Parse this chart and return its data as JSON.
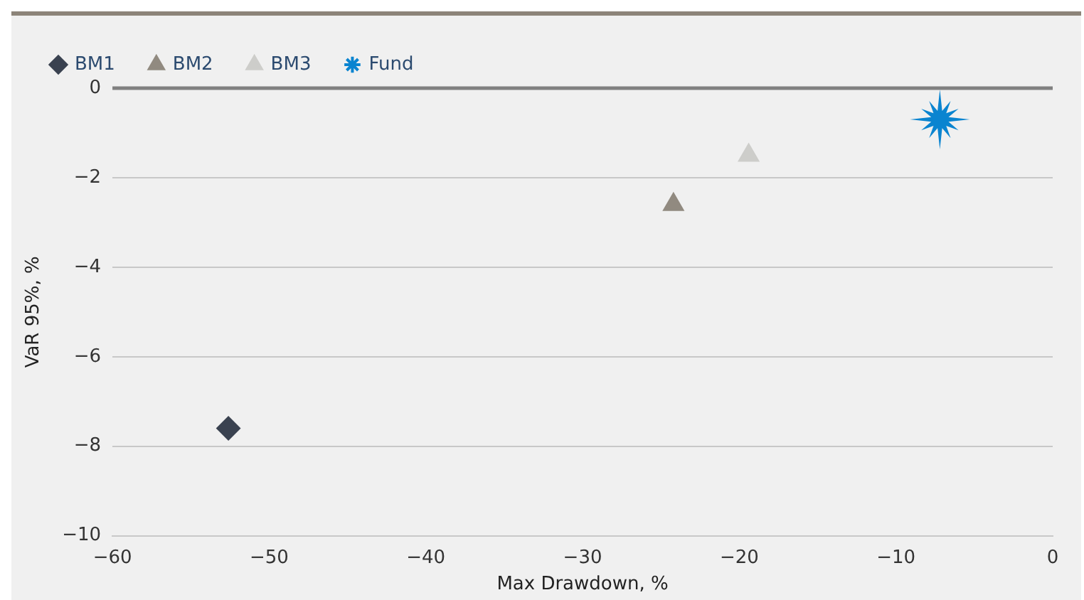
{
  "chart_data": {
    "type": "scatter",
    "xlabel": "Max Drawdown, %",
    "ylabel": "VaR 95%, %",
    "xlim": [
      -60,
      0
    ],
    "xticks": [
      -60,
      -50,
      -40,
      -30,
      -20,
      -10,
      0
    ],
    "ylim": [
      -10,
      0
    ],
    "yticks": [
      -10,
      -8,
      -6,
      -4,
      -2,
      0
    ],
    "grid": "y",
    "legend": "top left",
    "ref_lines": [
      {
        "axis": "y",
        "value": 0,
        "color": "#808080"
      }
    ],
    "series": [
      {
        "name": "BM1",
        "color": "#3a4250",
        "marker": "diamond",
        "x": [
          -52.6
        ],
        "values": [
          -7.6
        ]
      },
      {
        "name": "BM2",
        "color": "#918a80",
        "marker": "triangle",
        "x": [
          -24.2
        ],
        "values": [
          -2.6
        ]
      },
      {
        "name": "BM3",
        "color": "#cdcdca",
        "marker": "triangle",
        "x": [
          -19.4
        ],
        "values": [
          -1.5
        ]
      },
      {
        "name": "Fund",
        "color": "#0a84d0",
        "marker": "star",
        "x": [
          -7.2
        ],
        "values": [
          -0.7
        ]
      }
    ]
  }
}
